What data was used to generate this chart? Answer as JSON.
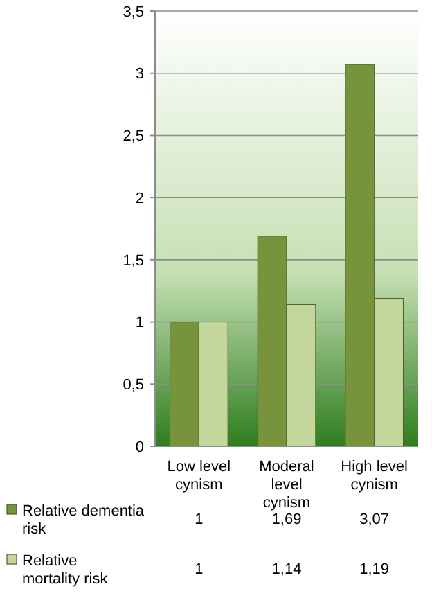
{
  "chart_data": {
    "type": "bar",
    "categories": [
      "Low level cynism",
      "Moderal level cynism",
      "High level cynism"
    ],
    "series": [
      {
        "name": "Relative dementia risk",
        "color": "#77933c",
        "values": [
          1,
          1.69,
          3.07
        ],
        "value_labels": [
          "1",
          "1,69",
          "3,07"
        ]
      },
      {
        "name": "Relative mortality risk",
        "color": "#c3d69b",
        "values": [
          1,
          1.14,
          1.19
        ],
        "value_labels": [
          "1",
          "1,14",
          "1,19"
        ]
      }
    ],
    "ylim": [
      0,
      3.5
    ],
    "yticks": [
      0,
      {
        "value": 0.5,
        "label": "0,5"
      },
      1,
      {
        "value": 1.5,
        "label": "1,5"
      },
      2,
      {
        "value": 2.5,
        "label": "2,5"
      },
      3,
      {
        "value": 3.5,
        "label": "3,5"
      }
    ],
    "grid": "y",
    "legend": "bottom"
  }
}
